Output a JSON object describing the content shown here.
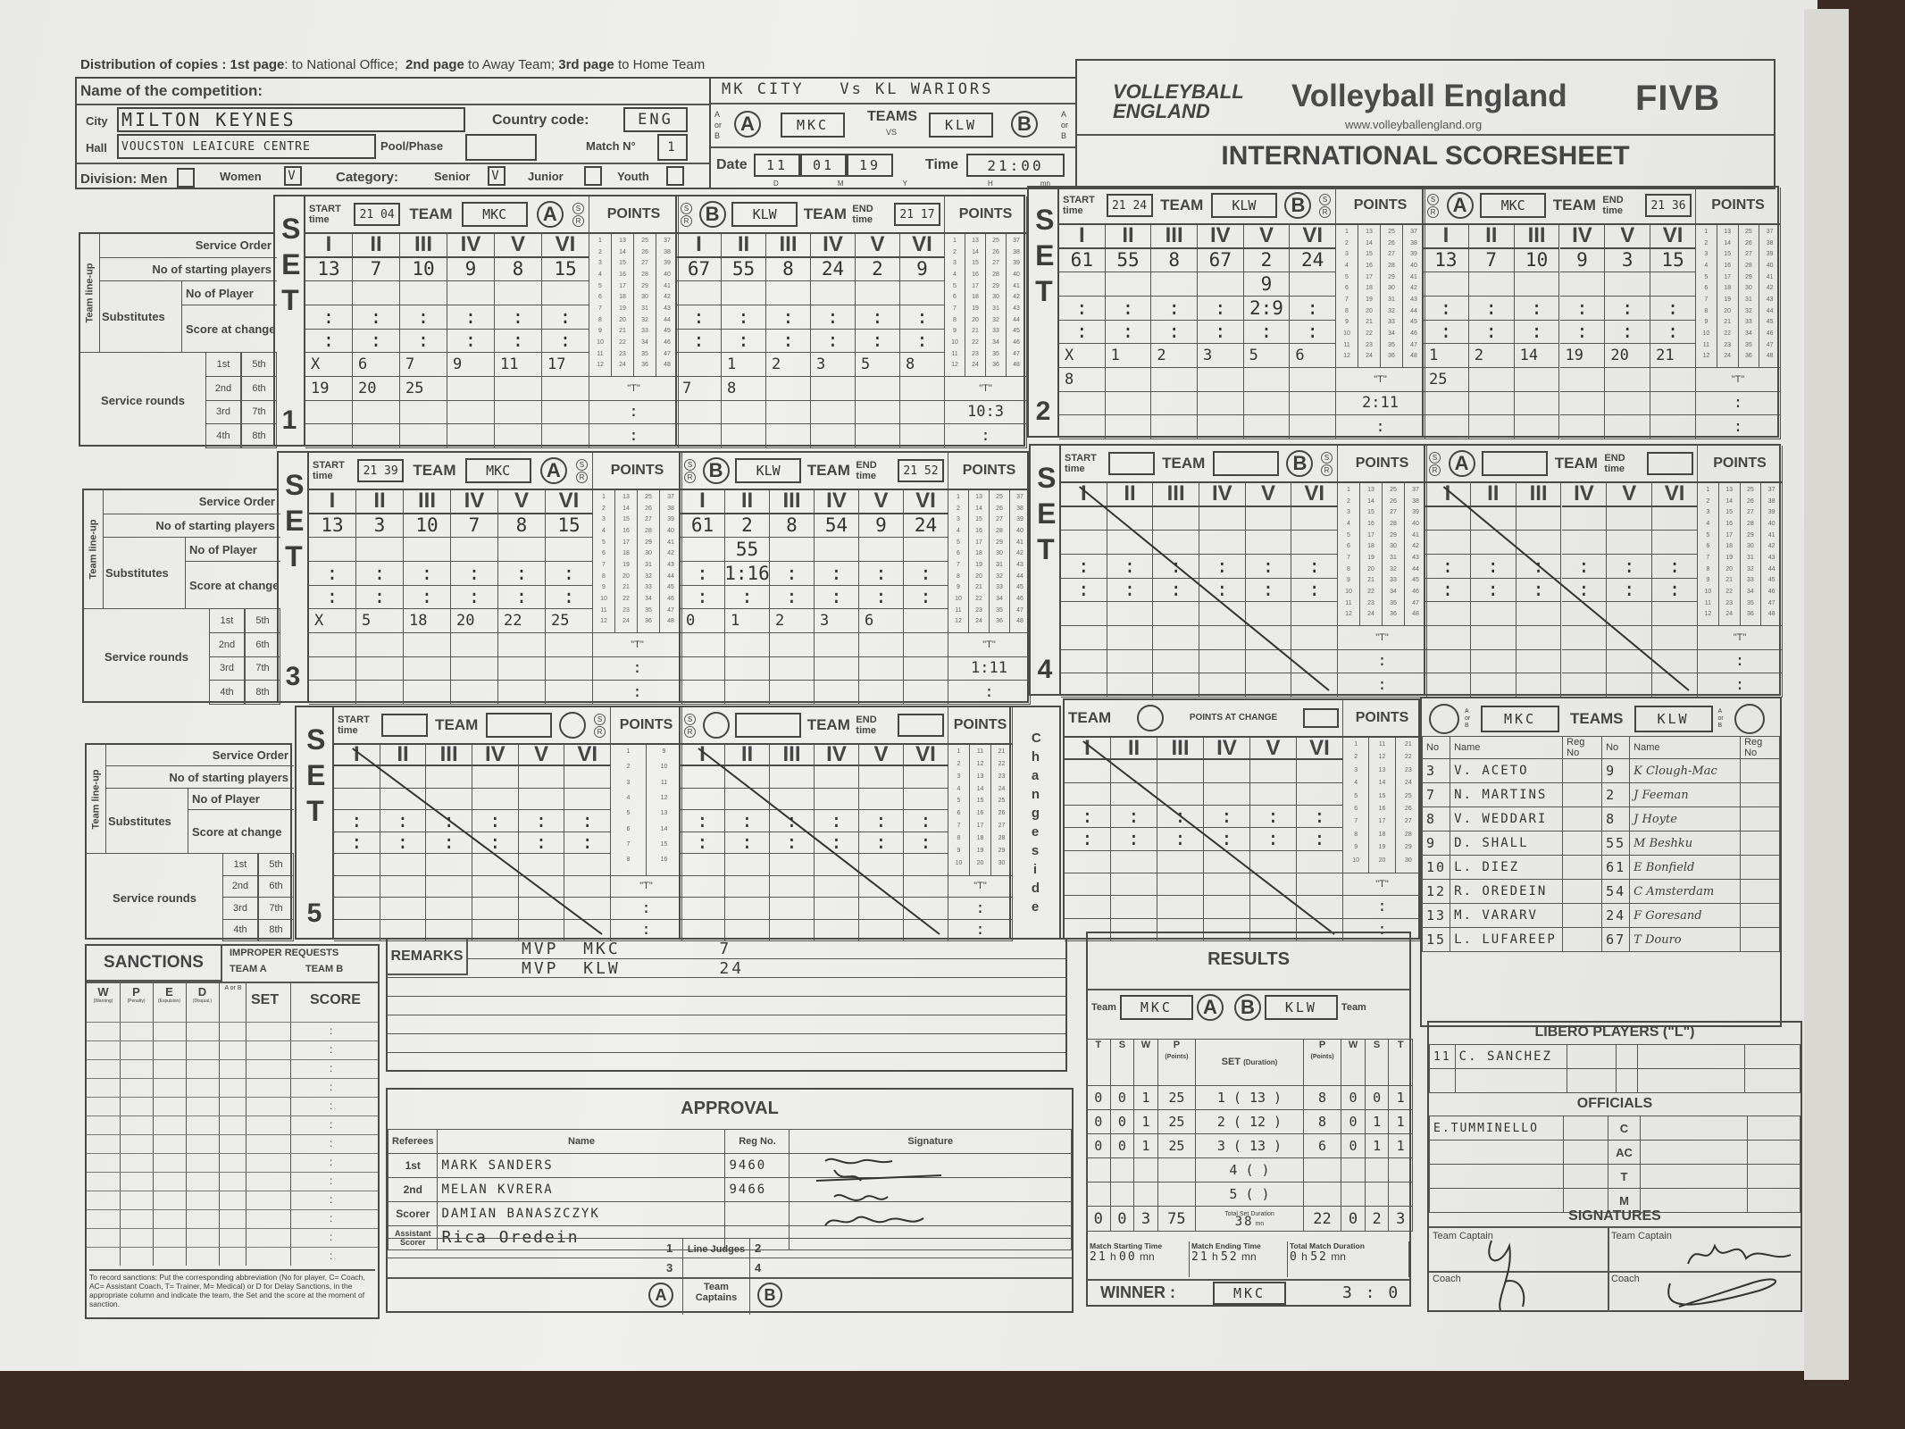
{
  "header": {
    "distribution": [
      "Distribution of copies :",
      "1st page",
      ": to National Office;",
      "2nd page",
      "to Away Team;",
      "3rd page",
      "to Home Team"
    ],
    "competition_label": "Name of the competition:",
    "city_label": "City",
    "city": "MILTON KEYNES",
    "hall_label": "Hall",
    "hall": "VOUCSTON LEAICURE CENTRE",
    "country_label": "Country code:",
    "country": "ENG",
    "pool_label": "Pool/Phase",
    "pool": "",
    "match_label": "Match N°",
    "match_no": "1",
    "division_label": "Division: Men",
    "women_label": "Women",
    "men_checked": "",
    "women_checked": "V",
    "category_label": "Category:",
    "senior_label": "Senior",
    "senior_checked": "V",
    "junior_label": "Junior",
    "youth_label": "Youth",
    "match_title": "MK CITY   Vs KL WARIORS",
    "a_or_b": "A or B",
    "team_a_letter": "A",
    "team_a": "MKC",
    "teams_label": "TEAMS",
    "vs": "VS",
    "team_b": "KLW",
    "team_b_letter": "B",
    "date_label": "Date",
    "date": [
      "11",
      "01",
      "19"
    ],
    "date_units": [
      "D",
      "M",
      "Y"
    ],
    "time_label": "Time",
    "time": "21:00",
    "time_units": [
      "H",
      "mn"
    ],
    "logo_text": "VOLLEYBALL ENGLAND",
    "org_name": "Volleyball England",
    "org_url": "www.volleyballengland.org",
    "fivb": "FIVB",
    "sheet_title": "INTERNATIONAL SCORESHEET"
  },
  "form": {
    "roman": [
      "I",
      "II",
      "III",
      "IV",
      "V",
      "VI"
    ],
    "start_time": "START time",
    "end_time": "END time",
    "hmn": "H   mn",
    "team": "TEAM",
    "points": "POINTS",
    "t": "\"T\"",
    "colon": ":",
    "set": "SET",
    "s": "S",
    "r": "R",
    "change_side": "Change side",
    "points_at_change": "POINTS AT CHANGE",
    "labels": {
      "team_lineup": "Team line-up",
      "service_order": "Service Order",
      "starting": "No of starting players",
      "no_of_player": "No of Player",
      "substitutes": "Substitutes",
      "score_at_change": "Score at change",
      "service_rounds": "Service rounds",
      "rounds": [
        "1st",
        "2nd",
        "3rd",
        "4th",
        "5th",
        "6th",
        "7th",
        "8th"
      ]
    }
  },
  "point_numbers": [
    1,
    2,
    3,
    4,
    5,
    6,
    7,
    8,
    9,
    10,
    11,
    12,
    13,
    14,
    15,
    16,
    17,
    18,
    19,
    20,
    21,
    22,
    23,
    24,
    25,
    26,
    27,
    28,
    29,
    30,
    31,
    32,
    33,
    34,
    35,
    36,
    37,
    38,
    39,
    40,
    41,
    42,
    43,
    44,
    45,
    46,
    47,
    48
  ],
  "sets": [
    {
      "num": "1",
      "a": {
        "time": "21 04",
        "team": "MKC",
        "letter": "A",
        "players": [
          "13",
          "7",
          "10",
          "9",
          "8",
          "15"
        ],
        "subs": [
          "",
          "",
          "",
          "",
          "",
          ""
        ],
        "scores": [
          "",
          "",
          "",
          "",
          "",
          ""
        ],
        "scores2": [
          "",
          "",
          "",
          "",
          "",
          ""
        ],
        "service": [
          "X",
          "6",
          "7",
          "9",
          "11",
          "17",
          "19",
          "20",
          "25",
          "",
          "",
          "",
          "",
          "",
          "",
          "",
          "",
          "",
          "",
          "",
          "",
          "",
          "",
          ""
        ],
        "timeouts": [
          "",
          ""
        ]
      },
      "b": {
        "time": "21 17",
        "team": "KLW",
        "letter": "B",
        "players": [
          "67",
          "55",
          "8",
          "24",
          "2",
          "9"
        ],
        "subs": [
          "",
          "",
          "",
          "",
          "",
          ""
        ],
        "scores": [
          "",
          "",
          "",
          "",
          "",
          ""
        ],
        "scores2": [
          "",
          "",
          "",
          "",
          "",
          ""
        ],
        "service": [
          "",
          "1",
          "2",
          "3",
          "5",
          "8",
          "7",
          "8",
          "",
          "",
          "",
          "",
          "",
          "",
          "",
          "",
          "",
          "",
          "",
          "",
          "",
          "",
          "",
          ""
        ],
        "timeouts": [
          "10:3",
          ""
        ]
      }
    },
    {
      "num": "2",
      "a": {
        "time": "21 24",
        "team": "KLW",
        "letter": "B",
        "players": [
          "61",
          "55",
          "8",
          "67",
          "2",
          "24"
        ],
        "subs": [
          "",
          "",
          "",
          "",
          "9",
          ""
        ],
        "scores": [
          "",
          "",
          "",
          "",
          "2:9",
          ""
        ],
        "scores2": [
          "",
          "",
          "",
          "",
          "",
          ""
        ],
        "service": [
          "X",
          "1",
          "2",
          "3",
          "5",
          "6",
          "8",
          "",
          "",
          "",
          "",
          "",
          "",
          "",
          "",
          "",
          "",
          "",
          "",
          "",
          "",
          "",
          "",
          ""
        ],
        "timeouts": [
          "2:11",
          ""
        ]
      },
      "b": {
        "time": "21 36",
        "team": "MKC",
        "letter": "A",
        "players": [
          "13",
          "7",
          "10",
          "9",
          "3",
          "15"
        ],
        "subs": [
          "",
          "",
          "",
          "",
          "",
          ""
        ],
        "scores": [
          "",
          "",
          "",
          "",
          "",
          ""
        ],
        "scores2": [
          "",
          "",
          "",
          "",
          "",
          ""
        ],
        "service": [
          "1",
          "2",
          "14",
          "19",
          "20",
          "21",
          "25",
          "",
          "",
          "",
          "",
          "",
          "",
          "",
          "",
          "",
          "",
          "",
          "",
          "",
          "",
          "",
          "",
          ""
        ],
        "timeouts": [
          "",
          ""
        ]
      }
    },
    {
      "num": "3",
      "a": {
        "time": "21 39",
        "team": "MKC",
        "letter": "A",
        "players": [
          "13",
          "3",
          "10",
          "7",
          "8",
          "15"
        ],
        "subs": [
          "",
          "",
          "",
          "",
          "",
          ""
        ],
        "scores": [
          "",
          "",
          "",
          "",
          "",
          ""
        ],
        "scores2": [
          "",
          "",
          "",
          "",
          "",
          ""
        ],
        "service": [
          "X",
          "5",
          "18",
          "20",
          "22",
          "25",
          "",
          "",
          "",
          "",
          "",
          "",
          "",
          "",
          "",
          "",
          "",
          "",
          "",
          "",
          "",
          "",
          "",
          ""
        ],
        "timeouts": [
          "",
          ""
        ]
      },
      "b": {
        "time": "21 52",
        "team": "KLW",
        "letter": "B",
        "players": [
          "61",
          "2",
          "8",
          "54",
          "9",
          "24"
        ],
        "subs": [
          "",
          "55",
          "",
          "",
          "",
          ""
        ],
        "scores": [
          "",
          "1:16",
          "",
          "",
          "",
          ""
        ],
        "scores2": [
          "",
          "",
          "",
          "",
          "",
          ""
        ],
        "service": [
          "0",
          "1",
          "2",
          "3",
          "6",
          "",
          "",
          "",
          "",
          "",
          "",
          "",
          "",
          "",
          "",
          "",
          "",
          "",
          "",
          "",
          "",
          "",
          "",
          ""
        ],
        "timeouts": [
          "1:11",
          ""
        ]
      }
    },
    {
      "num": "4",
      "a": {
        "time": "",
        "team": "",
        "letter": "B",
        "players": [
          "",
          "",
          "",
          "",
          "",
          ""
        ],
        "subs": [
          "",
          "",
          "",
          "",
          "",
          ""
        ],
        "scores": [
          "",
          "",
          "",
          "",
          "",
          ""
        ],
        "scores2": [
          "",
          "",
          "",
          "",
          "",
          ""
        ],
        "service": [
          "",
          "",
          "",
          "",
          "",
          "",
          "",
          "",
          "",
          "",
          "",
          "",
          "",
          "",
          "",
          "",
          "",
          "",
          "",
          "",
          "",
          "",
          "",
          ""
        ],
        "timeouts": [
          "",
          ""
        ]
      },
      "b": {
        "time": "",
        "team": "",
        "letter": "A",
        "players": [
          "",
          "",
          "",
          "",
          "",
          ""
        ],
        "subs": [
          "",
          "",
          "",
          "",
          "",
          ""
        ],
        "scores": [
          "",
          "",
          "",
          "",
          "",
          ""
        ],
        "scores2": [
          "",
          "",
          "",
          "",
          "",
          ""
        ],
        "service": [
          "",
          "",
          "",
          "",
          "",
          "",
          "",
          "",
          "",
          "",
          "",
          "",
          "",
          "",
          "",
          "",
          "",
          "",
          "",
          "",
          "",
          "",
          "",
          ""
        ],
        "timeouts": [
          "",
          ""
        ]
      }
    },
    {
      "num": "5",
      "a": {
        "time": "",
        "team": "",
        "letter": "",
        "players": [
          "",
          "",
          "",
          "",
          "",
          ""
        ],
        "subs": [
          "",
          "",
          "",
          "",
          "",
          ""
        ],
        "scores": [
          "",
          "",
          "",
          "",
          "",
          ""
        ],
        "scores2": [
          "",
          "",
          "",
          "",
          "",
          ""
        ],
        "service": [
          "",
          "",
          "",
          "",
          "",
          "",
          "",
          "",
          "",
          "",
          "",
          "",
          "",
          "",
          "",
          "",
          "",
          "",
          "",
          "",
          "",
          "",
          "",
          ""
        ],
        "timeouts": [
          "",
          ""
        ]
      },
      "b": {
        "time": "",
        "team": "",
        "letter": "",
        "players": [
          "",
          "",
          "",
          "",
          "",
          ""
        ],
        "subs": [
          "",
          "",
          "",
          "",
          "",
          ""
        ],
        "scores": [
          "",
          "",
          "",
          "",
          "",
          ""
        ],
        "scores2": [
          "",
          "",
          "",
          "",
          "",
          ""
        ],
        "service": [
          "",
          "",
          "",
          "",
          "",
          "",
          "",
          "",
          "",
          "",
          "",
          "",
          "",
          "",
          "",
          "",
          "",
          "",
          "",
          "",
          "",
          "",
          "",
          ""
        ],
        "timeouts": [
          "",
          ""
        ]
      },
      "c": {
        "time": "",
        "team": "",
        "letter": "",
        "players": [
          "",
          "",
          "",
          "",
          "",
          ""
        ],
        "subs": [
          "",
          "",
          "",
          "",
          "",
          ""
        ],
        "scores": [
          "",
          "",
          "",
          "",
          "",
          ""
        ],
        "scores2": [
          "",
          "",
          "",
          "",
          "",
          ""
        ],
        "service": [
          "",
          "",
          "",
          "",
          "",
          "",
          "",
          "",
          "",
          "",
          "",
          "",
          "",
          "",
          "",
          "",
          "",
          "",
          "",
          "",
          "",
          "",
          "",
          ""
        ],
        "timeouts": [
          "",
          ""
        ]
      }
    }
  ],
  "roster": {
    "a_or_b": "A or B",
    "team_a": "MKC",
    "teams_label": "TEAMS",
    "team_b": "KLW",
    "headers": [
      "No",
      "Name",
      "Reg No",
      "No",
      "Name",
      "Reg No"
    ],
    "team_a_players": [
      {
        "no": "3",
        "name": "V. ACETO"
      },
      {
        "no": "7",
        "name": "N. MARTINS"
      },
      {
        "no": "8",
        "name": "V. WEDDARI"
      },
      {
        "no": "9",
        "name": "D. SHALL"
      },
      {
        "no": "10",
        "name": "L. DIEZ"
      },
      {
        "no": "12",
        "name": "R. OREDEIN"
      },
      {
        "no": "13",
        "name": "M. VARARV"
      },
      {
        "no": "15",
        "name": "L. LUFAREEP"
      }
    ],
    "team_b_players": [
      {
        "no": "9",
        "name": "K Clough-Mac"
      },
      {
        "no": "2",
        "name": "J Feeman"
      },
      {
        "no": "8",
        "name": "J Hoyte"
      },
      {
        "no": "55",
        "name": "M Beshku"
      },
      {
        "no": "61",
        "name": "E Bonfield"
      },
      {
        "no": "54",
        "name": "C Amsterdam"
      },
      {
        "no": "24",
        "name": "F Goresand"
      },
      {
        "no": "67",
        "name": "T Douro"
      }
    ]
  },
  "libero": {
    "title": "LIBERO PLAYERS (\"L\")",
    "team_a": [
      {
        "no": "11",
        "name": "C. SANCHEZ"
      }
    ]
  },
  "officials": {
    "title": "OFFICIALS",
    "team_a_coach": "E.TUMMINELLO",
    "roles": [
      "C",
      "AC",
      "T",
      "M"
    ]
  },
  "signatures": {
    "title": "SIGNATURES",
    "captain": "Team Captain",
    "coach": "Coach"
  },
  "sanctions": {
    "title": "SANCTIONS",
    "improper": "IMPROPER REQUESTS",
    "team_a": "TEAM A",
    "team_b": "TEAM B",
    "cols": [
      "W",
      "P",
      "E",
      "D"
    ],
    "col_notes": [
      "(Warning)",
      "(Penalty)",
      "(Expulsion)",
      "(Disqual.)"
    ],
    "a_or_b": "A or B",
    "set": "SET",
    "score": "SCORE",
    "colon": ":",
    "note": "To record sanctions: Put the corresponding abbreviation (No for player, C= Coach, AC= Assistant Coach, T= Trainer, M= Medical) or D for Delay Sanctions, in the appropriate column and indicate the team, the Set and the score at the moment of sanction."
  },
  "remarks": {
    "title": "REMARKS",
    "lines": [
      "MVP  MKC        7",
      "MVP  KLW        24"
    ]
  },
  "approval": {
    "title": "APPROVAL",
    "headers": [
      "Referees",
      "Name",
      "Reg No.",
      "Signature"
    ],
    "rows": [
      {
        "role": "1st",
        "name": "MARK SANDERS",
        "reg": "9460"
      },
      {
        "role": "2nd",
        "name": "MELAN KVRERA",
        "reg": "9466"
      },
      {
        "role": "Scorer",
        "name": "DAMIAN BANASZCZYK",
        "reg": ""
      },
      {
        "role": "Assistant Scorer",
        "name": "Rica Oredein",
        "reg": ""
      }
    ],
    "line_judges": "Line Judges",
    "lj_numbers": [
      "1",
      "2",
      "3",
      "4"
    ],
    "team_captains": "Team Captains",
    "a": "A",
    "b": "B"
  },
  "results": {
    "title": "RESULTS",
    "team_label": "Team",
    "team_a": "MKC",
    "team_b": "KLW",
    "a": "A",
    "b": "B",
    "cols_left": [
      "T",
      "S",
      "W",
      "P"
    ],
    "cols_right": [
      "P",
      "W",
      "S",
      "T"
    ],
    "points_note": "(Points)",
    "set_label": "SET",
    "duration_label": "(Duration)",
    "rows": [
      {
        "a": [
          "0",
          "0",
          "1",
          "25"
        ],
        "set": "1",
        "dur": "13",
        "b": [
          "8",
          "0",
          "0",
          "1"
        ]
      },
      {
        "a": [
          "0",
          "0",
          "1",
          "25"
        ],
        "set": "2",
        "dur": "12",
        "b": [
          "8",
          "0",
          "1",
          "1"
        ]
      },
      {
        "a": [
          "0",
          "0",
          "1",
          "25"
        ],
        "set": "3",
        "dur": "13",
        "b": [
          "6",
          "0",
          "1",
          "1"
        ]
      },
      {
        "a": [
          "",
          "",
          "",
          ""
        ],
        "set": "4",
        "dur": "",
        "b": [
          "",
          "",
          "",
          ""
        ]
      },
      {
        "a": [
          "",
          "",
          "",
          ""
        ],
        "set": "5",
        "dur": "",
        "b": [
          "",
          "",
          "",
          ""
        ]
      }
    ],
    "total_a": [
      "0",
      "0",
      "3",
      "75"
    ],
    "total_b": [
      "22",
      "0",
      "2",
      "3"
    ],
    "total_duration_label": "Total Set Duration",
    "total_duration": "38",
    "mn": "mn",
    "start_label": "Match Starting Time",
    "start": [
      "21",
      "00"
    ],
    "end_label": "Match Ending Time",
    "end": [
      "21",
      "52"
    ],
    "total_label": "Total Match Duration",
    "total": [
      "0",
      "52"
    ],
    "h": "h",
    "winner_label": "WINNER :",
    "winner": "MKC",
    "final_score": "3 : 0"
  }
}
